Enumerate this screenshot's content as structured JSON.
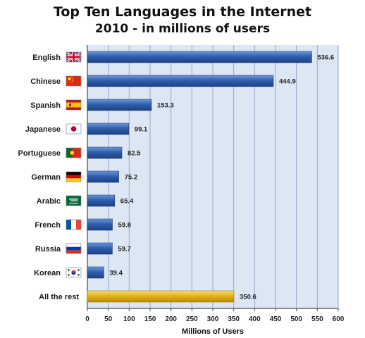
{
  "chart_data": {
    "type": "bar",
    "orientation": "horizontal",
    "title": "Top Ten Languages in the Internet",
    "subtitle": "2010 - in millions of users",
    "xlabel": "Millions of Users",
    "ylabel": "",
    "xlim": [
      0,
      600
    ],
    "xticks": [
      0,
      50,
      100,
      150,
      200,
      250,
      300,
      350,
      400,
      450,
      500,
      550,
      600
    ],
    "grid": true,
    "categories": [
      "English",
      "Chinese",
      "Spanish",
      "Japanese",
      "Portuguese",
      "German",
      "Arabic",
      "French",
      "Russia",
      "Korean",
      "All the rest"
    ],
    "values": [
      536.6,
      444.9,
      153.3,
      99.1,
      82.5,
      75.2,
      65.4,
      59.8,
      59.7,
      39.4,
      350.6
    ],
    "value_labels": [
      "536.6",
      "444.9",
      "153.3",
      "99.1",
      "82.5",
      "75.2",
      "65.4",
      "59.8",
      "59.7",
      "39.4",
      "350.6"
    ],
    "flag_icons": [
      "uk-flag-icon",
      "china-flag-icon",
      "spain-flag-icon",
      "japan-flag-icon",
      "portugal-flag-icon",
      "germany-flag-icon",
      "saudi-arabia-flag-icon",
      "france-flag-icon",
      "russia-flag-icon",
      "south-korea-flag-icon",
      ""
    ],
    "colors": {
      "bar": "#2f5fae",
      "bar_highlight": "#6f97d8",
      "rest_bar": "#e3b21c",
      "rest_bar_highlight": "#f6dc78",
      "plot_background": "#dde7f4",
      "grid": "#8fa9cf"
    }
  }
}
